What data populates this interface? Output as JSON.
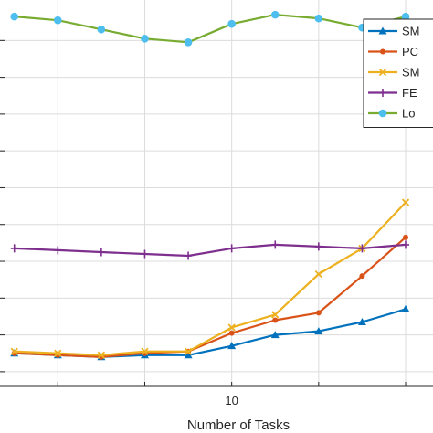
{
  "chart_data": {
    "type": "line",
    "xlabel": "Number of Tasks",
    "ylabel": "",
    "title": "",
    "xlim": [
      4.67,
      14.63
    ],
    "ylim": [
      -0.08,
      2.02
    ],
    "x_ticks": [
      4,
      6,
      8,
      10,
      12,
      14
    ],
    "x_tick_labels": [
      "",
      "",
      "",
      "10",
      "",
      ""
    ],
    "y_ticks": [
      0,
      0.2,
      0.4,
      0.6,
      0.8,
      1.0,
      1.2,
      1.4,
      1.6,
      1.8
    ],
    "grid": true,
    "legend_position": "top-right",
    "x": [
      5,
      6,
      7,
      8,
      9,
      10,
      11,
      12,
      13,
      14
    ],
    "series": [
      {
        "name": "SM",
        "color": "#0072BD",
        "marker": "triangle",
        "values": [
          0.1,
          0.09,
          0.08,
          0.09,
          0.09,
          0.14,
          0.2,
          0.22,
          0.27,
          0.34
        ]
      },
      {
        "name": "PC",
        "color": "#D95319",
        "marker": "circle",
        "values": [
          0.1,
          0.09,
          0.08,
          0.1,
          0.11,
          0.21,
          0.28,
          0.32,
          0.52,
          0.73
        ]
      },
      {
        "name": "SM",
        "color": "#EDB120",
        "marker": "x",
        "values": [
          0.11,
          0.1,
          0.09,
          0.11,
          0.11,
          0.24,
          0.31,
          0.53,
          0.67,
          0.92
        ]
      },
      {
        "name": "FE",
        "color": "#7E2F8E",
        "marker": "plus",
        "values": [
          0.67,
          0.66,
          0.65,
          0.64,
          0.63,
          0.67,
          0.69,
          0.68,
          0.67,
          0.69
        ]
      },
      {
        "name": "Lo",
        "color": "#77AC30",
        "marker": "filled-circle",
        "values": [
          1.93,
          1.91,
          1.86,
          1.81,
          1.79,
          1.89,
          1.94,
          1.92,
          1.87,
          1.93
        ]
      }
    ]
  }
}
